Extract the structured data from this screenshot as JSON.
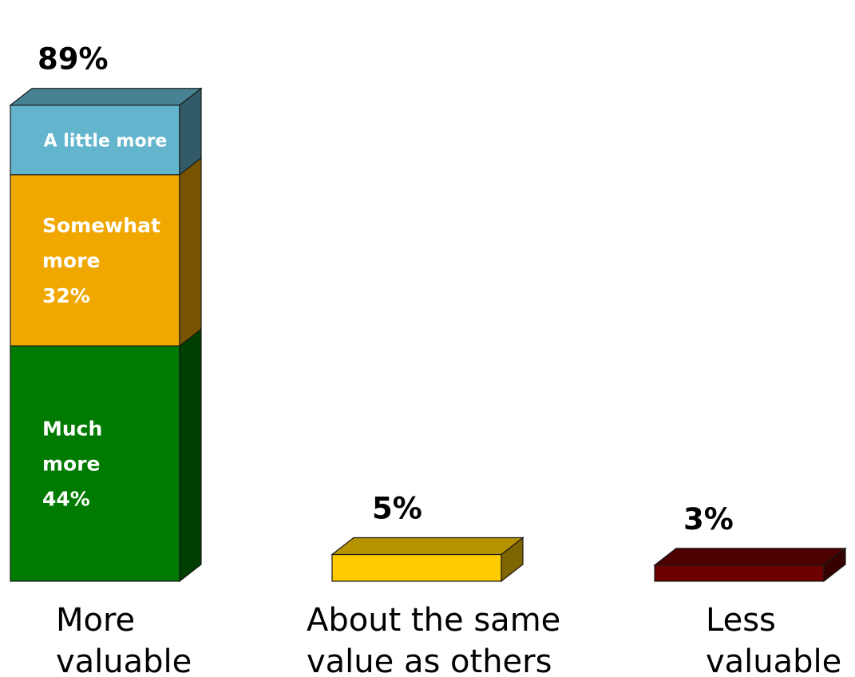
{
  "chart_data": {
    "type": "bar",
    "stacked": true,
    "three_d": true,
    "categories": [
      [
        "More",
        "valuable"
      ],
      [
        "About the same",
        "value as others"
      ],
      [
        "Less",
        "valuable"
      ]
    ],
    "totals": [
      "89%",
      "5%",
      "3%"
    ],
    "bars": [
      {
        "category": "More valuable",
        "total": 89,
        "segments": [
          {
            "name": "Much more",
            "value": 44,
            "label": [
              "Much",
              "more",
              "44%"
            ],
            "color": "#007A00"
          },
          {
            "name": "Somewhat more",
            "value": 32,
            "label": [
              "Somewhat",
              "more",
              "32%"
            ],
            "color": "#F0A800"
          },
          {
            "name": "A little more",
            "value": 13,
            "label": [
              "A little more"
            ],
            "color": "#62B5CC"
          }
        ]
      },
      {
        "category": "About the same value as others",
        "total": 5,
        "segments": [
          {
            "name": "About the same",
            "value": 5,
            "label": [],
            "color": "#FFCC00"
          }
        ]
      },
      {
        "category": "Less valuable",
        "total": 3,
        "segments": [
          {
            "name": "Less",
            "value": 3,
            "label": [],
            "color": "#6B0000"
          }
        ]
      }
    ],
    "ylim": [
      0,
      100
    ],
    "grid": false,
    "legend": "none",
    "title": "",
    "xlabel": "",
    "ylabel": ""
  }
}
